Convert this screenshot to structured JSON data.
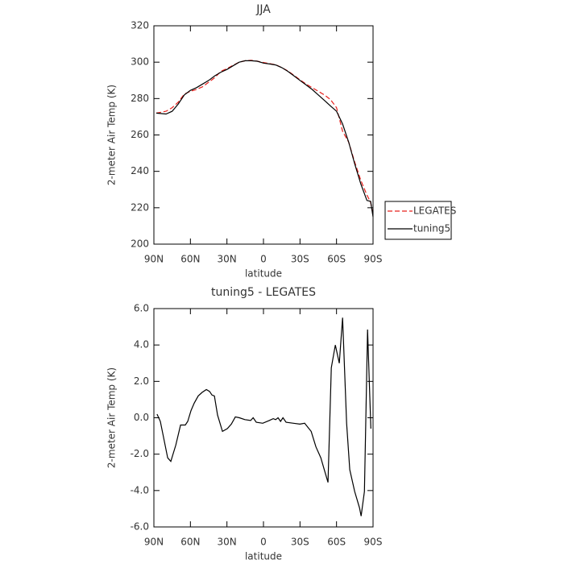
{
  "chart_data": [
    {
      "type": "line",
      "title": "JJA",
      "xlabel": "latitude",
      "ylabel": "2-meter Air Temp (K)",
      "xlim": [
        90,
        -90
      ],
      "xticks": [
        {
          "value": 90,
          "label": "90N"
        },
        {
          "value": 60,
          "label": "60N"
        },
        {
          "value": 30,
          "label": "30N"
        },
        0,
        {
          "value": -30,
          "label": "30S"
        },
        {
          "value": -60,
          "label": "60S"
        },
        {
          "value": -90,
          "label": "90S"
        }
      ],
      "ylim": [
        200,
        320
      ],
      "yticks": [
        200,
        220,
        240,
        260,
        280,
        300,
        320
      ],
      "legend": "right",
      "x": [
        88,
        80,
        75,
        70,
        65,
        60,
        55,
        50,
        45,
        40,
        35,
        30,
        25,
        20,
        15,
        10,
        5,
        0,
        -5,
        -10,
        -15,
        -20,
        -25,
        -30,
        -35,
        -40,
        -45,
        -50,
        -55,
        -60,
        -65,
        -70,
        -75,
        -80,
        -85,
        -88,
        -90
      ],
      "series": [
        {
          "name": "LEGATES",
          "color": "#e8201c",
          "style": "dashed",
          "values": [
            272,
            273,
            275,
            278,
            282.5,
            284,
            285,
            286.5,
            289,
            291.5,
            295,
            296.5,
            298.3,
            300,
            300.8,
            301,
            300.5,
            299.8,
            299.2,
            298.6,
            297,
            295.2,
            292.8,
            290.3,
            288,
            286,
            284,
            282,
            279.5,
            275,
            262,
            256,
            245,
            235,
            227,
            223,
            216
          ]
        },
        {
          "name": "tuning5",
          "color": "#000000",
          "style": "solid",
          "values": [
            272,
            271.5,
            273,
            277,
            282,
            284.5,
            286,
            288,
            290,
            292.5,
            294.5,
            296,
            298,
            300,
            300.8,
            300.8,
            300.5,
            299.5,
            299,
            298.5,
            297,
            295,
            292.5,
            290,
            287.5,
            285,
            282,
            279,
            276,
            273,
            266,
            256,
            244,
            233,
            224,
            223.5,
            215
          ]
        }
      ]
    },
    {
      "type": "line",
      "title": "tuning5 - LEGATES",
      "xlabel": "latitude",
      "ylabel": "2-meter Air Temp (K)",
      "xlim": [
        90,
        -90
      ],
      "xticks": [
        {
          "value": 90,
          "label": "90N"
        },
        {
          "value": 60,
          "label": "60N"
        },
        {
          "value": 30,
          "label": "30N"
        },
        0,
        {
          "value": -30,
          "label": "30S"
        },
        {
          "value": -60,
          "label": "60S"
        },
        {
          "value": -90,
          "label": "90S"
        }
      ],
      "ylim": [
        -6,
        6
      ],
      "yticks": [
        {
          "value": -6,
          "label": "-6.0"
        },
        {
          "value": -4,
          "label": "-4.0"
        },
        {
          "value": -2,
          "label": "-2.0"
        },
        {
          "value": 0,
          "label": "0.0"
        },
        {
          "value": 2,
          "label": "2.0"
        },
        {
          "value": 4,
          "label": "4.0"
        },
        {
          "value": 6,
          "label": "6.0"
        }
      ],
      "x": [
        87.4,
        84.7,
        78.7,
        76.1,
        72,
        68.1,
        64.2,
        62.2,
        59.5,
        56.9,
        53.6,
        50.3,
        46.9,
        44.3,
        42.3,
        40.3,
        37.7,
        33.7,
        29.7,
        26.4,
        23.1,
        19.8,
        15.2,
        10.5,
        8.5,
        5.9,
        0.6,
        -4.7,
        -8,
        -10,
        -12,
        -14,
        -16,
        -18.6,
        -24.6,
        -29.9,
        -33.8,
        -39.2,
        -43.1,
        -47.1,
        -49.7,
        -53,
        -55.7,
        -59,
        -62.3,
        -65,
        -68.3,
        -70.9,
        -74.9,
        -78.9,
        -80.2,
        -82.9,
        -85.5,
        -88.2
      ],
      "series": [
        {
          "name": "tuning5 - LEGATES",
          "color": "#000000",
          "style": "solid",
          "values": [
            0.2,
            -0.2,
            -2.2,
            -2.4,
            -1.5,
            -0.4,
            -0.4,
            -0.2,
            0.4,
            0.8,
            1.2,
            1.4,
            1.55,
            1.45,
            1.25,
            1.2,
            0.15,
            -0.75,
            -0.6,
            -0.35,
            0.05,
            0,
            -0.1,
            -0.15,
            0,
            -0.25,
            -0.3,
            -0.15,
            -0.05,
            -0.1,
            0,
            -0.2,
            0,
            -0.25,
            -0.3,
            -0.35,
            -0.3,
            -0.75,
            -1.6,
            -2.2,
            -2.8,
            -3.55,
            2.75,
            4,
            3,
            5.5,
            -0.3,
            -2.85,
            -4.05,
            -4.95,
            -5.4,
            -4.05,
            4.85,
            -0.6
          ]
        }
      ]
    }
  ]
}
